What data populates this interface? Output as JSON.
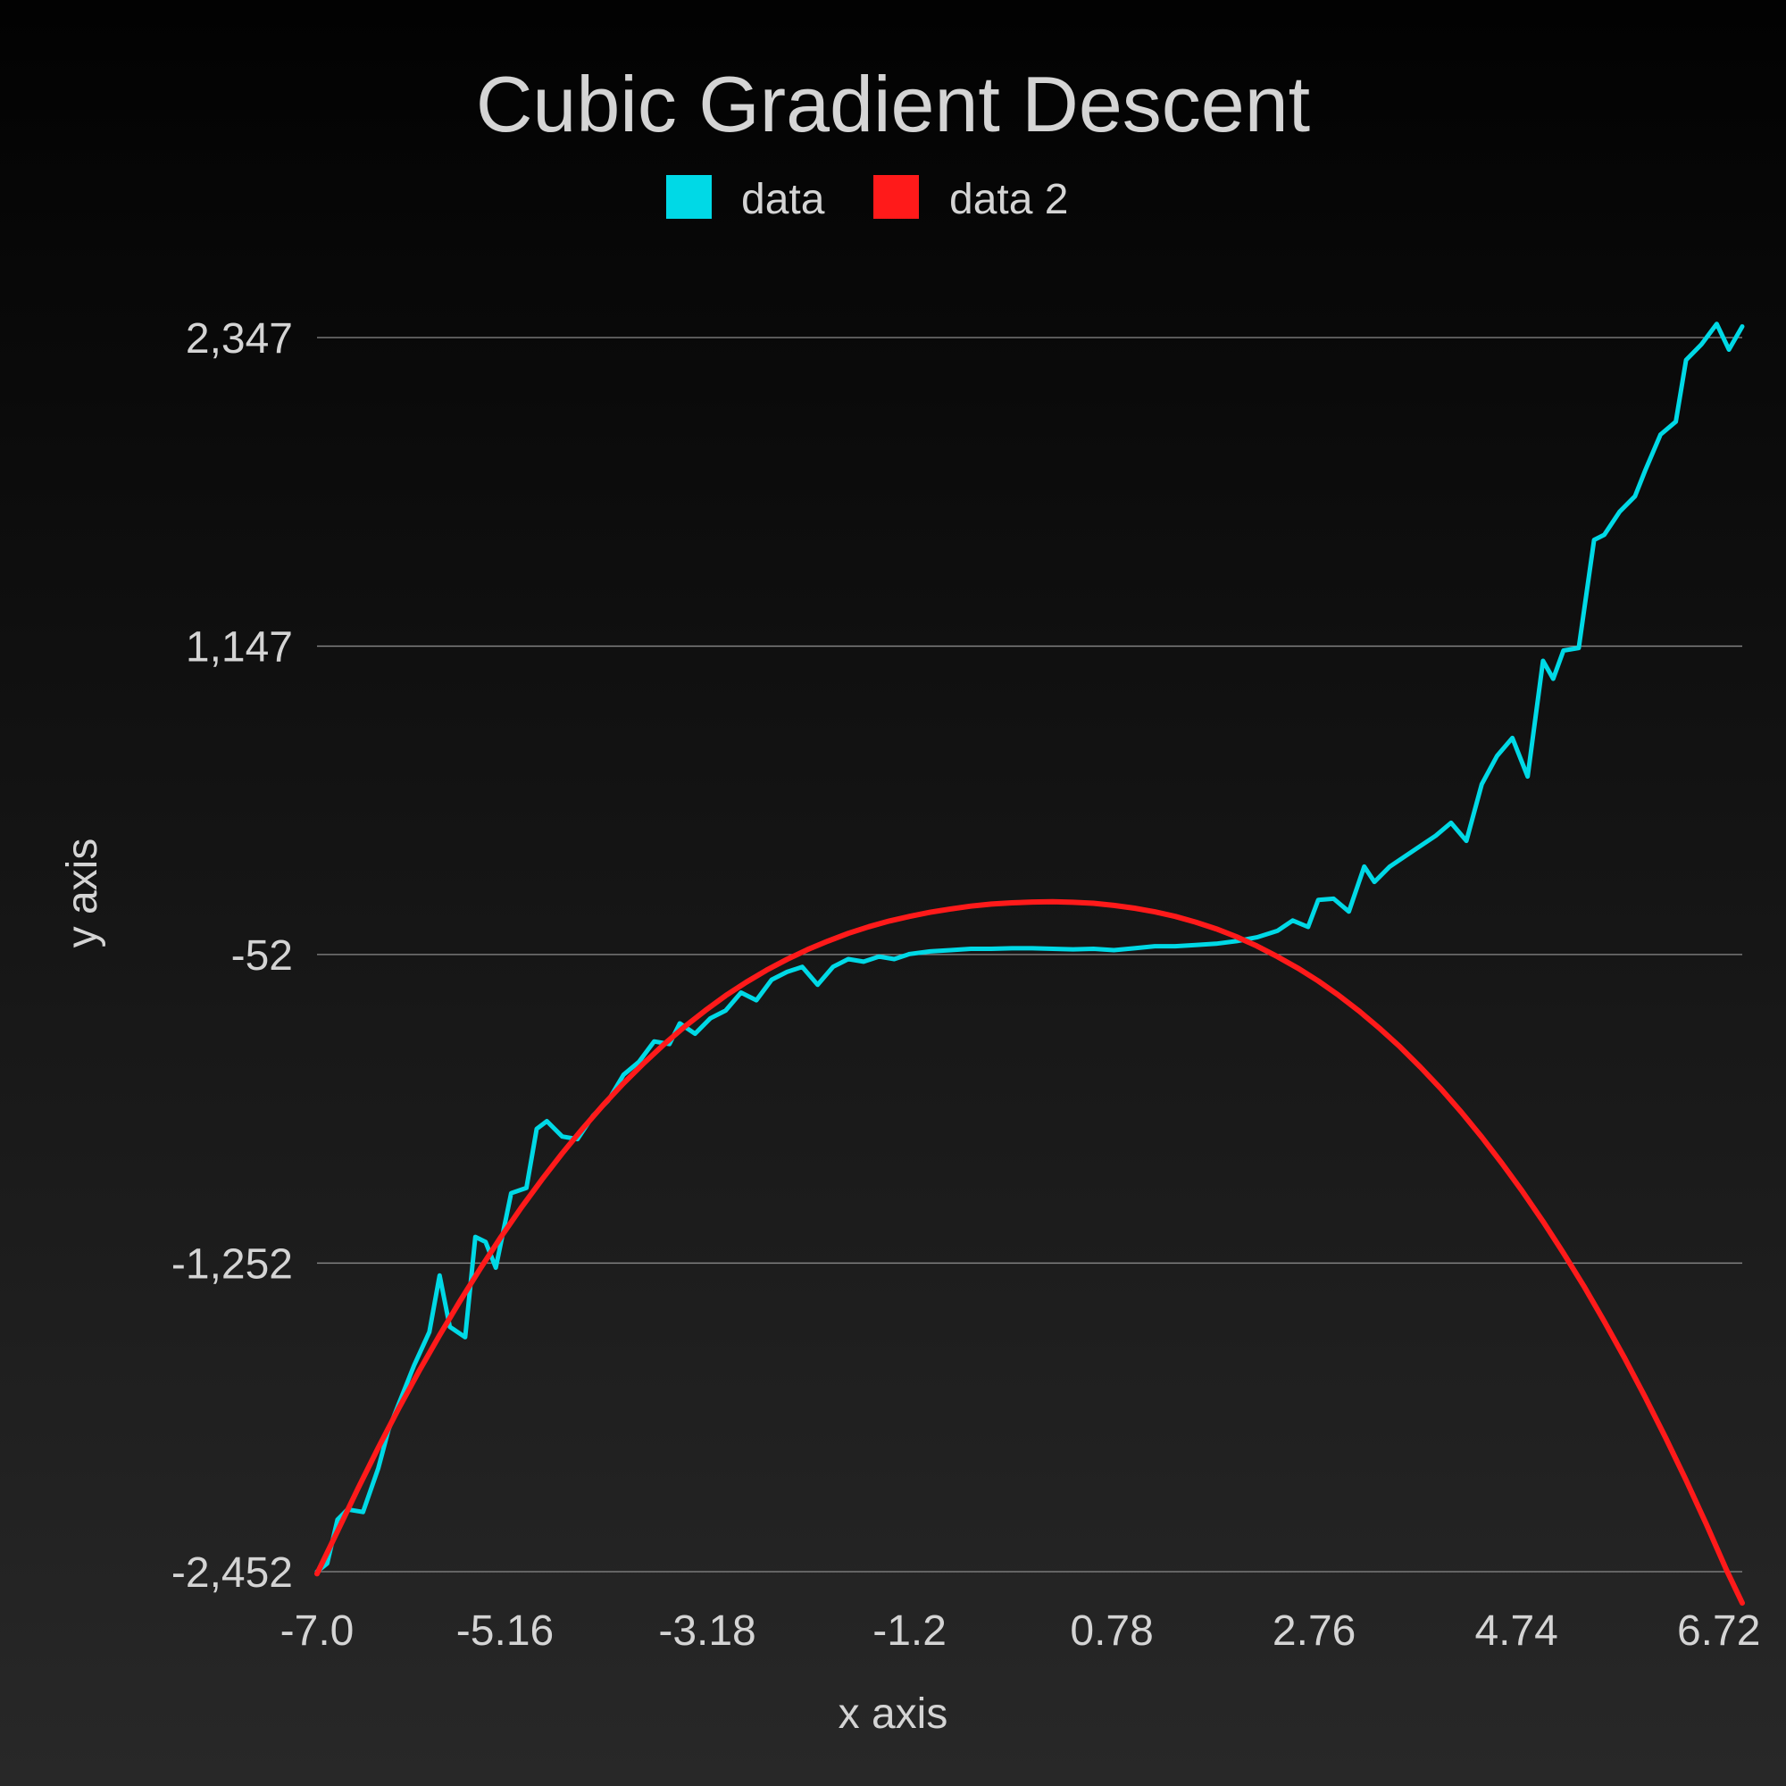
{
  "chart_data": {
    "type": "line",
    "title": "Cubic Gradient Descent",
    "xlabel": "x axis",
    "ylabel": "y axis",
    "xlim": [
      -7.0,
      6.95
    ],
    "ylim": [
      -2452,
      2347
    ],
    "x_ticks": [
      -7.0,
      -5.16,
      -3.18,
      -1.2,
      0.78,
      2.76,
      4.74,
      6.72
    ],
    "x_tick_labels": [
      "-7.0",
      "-5.16",
      "-3.18",
      "-1.2",
      "0.78",
      "2.76",
      "4.74",
      "6.72"
    ],
    "y_ticks": [
      -2452,
      -1252,
      -52,
      1147,
      2347
    ],
    "y_tick_labels": [
      "-2,452",
      "-1,252",
      "-52",
      "1,147",
      "2,347"
    ],
    "grid": {
      "x": false,
      "y": true
    },
    "legend_position": "top-center",
    "series": [
      {
        "name": "data",
        "color": "#00d9e6",
        "x": [
          -7.0,
          -6.9,
          -6.8,
          -6.7,
          -6.55,
          -6.4,
          -6.3,
          -6.2,
          -6.05,
          -5.9,
          -5.8,
          -5.7,
          -5.55,
          -5.45,
          -5.35,
          -5.25,
          -5.1,
          -4.95,
          -4.85,
          -4.75,
          -4.6,
          -4.45,
          -4.3,
          -4.15,
          -4.0,
          -3.85,
          -3.7,
          -3.55,
          -3.45,
          -3.3,
          -3.15,
          -3.0,
          -2.85,
          -2.7,
          -2.55,
          -2.4,
          -2.25,
          -2.1,
          -1.95,
          -1.8,
          -1.65,
          -1.5,
          -1.35,
          -1.2,
          -1.0,
          -0.8,
          -0.6,
          -0.4,
          -0.2,
          0.0,
          0.2,
          0.4,
          0.6,
          0.8,
          1.0,
          1.2,
          1.4,
          1.6,
          1.8,
          2.0,
          2.2,
          2.4,
          2.55,
          2.7,
          2.8,
          2.95,
          3.1,
          3.25,
          3.35,
          3.5,
          3.65,
          3.8,
          3.95,
          4.1,
          4.25,
          4.4,
          4.55,
          4.7,
          4.85,
          5.0,
          5.1,
          5.2,
          5.35,
          5.5,
          5.6,
          5.75,
          5.9,
          6.0,
          6.15,
          6.3,
          6.4,
          6.55,
          6.7,
          6.82,
          6.95
        ],
        "y": [
          -2452,
          -2420,
          -2250,
          -2210,
          -2220,
          -2050,
          -1900,
          -1800,
          -1650,
          -1520,
          -1300,
          -1500,
          -1540,
          -1150,
          -1170,
          -1270,
          -980,
          -960,
          -730,
          -700,
          -760,
          -770,
          -680,
          -620,
          -520,
          -470,
          -390,
          -400,
          -320,
          -360,
          -300,
          -270,
          -200,
          -230,
          -150,
          -120,
          -100,
          -170,
          -100,
          -70,
          -80,
          -60,
          -70,
          -50,
          -40,
          -35,
          -30,
          -30,
          -28,
          -28,
          -30,
          -32,
          -30,
          -35,
          -28,
          -20,
          -20,
          -15,
          -10,
          0,
          15,
          40,
          80,
          55,
          160,
          165,
          115,
          290,
          230,
          290,
          330,
          370,
          410,
          460,
          390,
          610,
          720,
          790,
          640,
          1090,
          1020,
          1130,
          1140,
          1560,
          1580,
          1670,
          1730,
          1830,
          1970,
          2020,
          2260,
          2320,
          2400,
          2300,
          2390
        ]
      },
      {
        "name": "data 2",
        "color": "#ff1a1a",
        "x": [
          -7.0,
          -6.8,
          -6.6,
          -6.4,
          -6.2,
          -6.0,
          -5.8,
          -5.6,
          -5.4,
          -5.2,
          -5.0,
          -4.8,
          -4.6,
          -4.4,
          -4.2,
          -4.0,
          -3.8,
          -3.6,
          -3.4,
          -3.2,
          -3.0,
          -2.8,
          -2.6,
          -2.4,
          -2.2,
          -2.0,
          -1.8,
          -1.6,
          -1.4,
          -1.2,
          -1.0,
          -0.8,
          -0.6,
          -0.4,
          -0.2,
          0.0,
          0.2,
          0.4,
          0.6,
          0.8,
          1.0,
          1.2,
          1.4,
          1.6,
          1.8,
          2.0,
          2.2,
          2.4,
          2.6,
          2.8,
          3.0,
          3.2,
          3.4,
          3.6,
          3.8,
          4.0,
          4.2,
          4.4,
          4.6,
          4.8,
          5.0,
          5.2,
          5.4,
          5.6,
          5.8,
          6.0,
          6.2,
          6.4,
          6.6,
          6.8,
          6.95
        ],
        "y": [
          -2460,
          -2295,
          -2129,
          -1970,
          -1817,
          -1671,
          -1532,
          -1399,
          -1272,
          -1151,
          -1036,
          -928,
          -825,
          -729,
          -638,
          -553,
          -474,
          -400,
          -332,
          -270,
          -212,
          -160,
          -113,
          -71,
          -33,
          0,
          30,
          56,
          78,
          96,
          112,
          125,
          136,
          144,
          149,
          152,
          153,
          151,
          147,
          139,
          128,
          114,
          96,
          74,
          48,
          17,
          -19,
          -60,
          -105,
          -155,
          -211,
          -272,
          -339,
          -411,
          -490,
          -574,
          -665,
          -762,
          -865,
          -974,
          -1090,
          -1213,
          -1342,
          -1479,
          -1622,
          -1773,
          -1931,
          -2096,
          -2269,
          -2449,
          -2574
        ]
      }
    ]
  }
}
